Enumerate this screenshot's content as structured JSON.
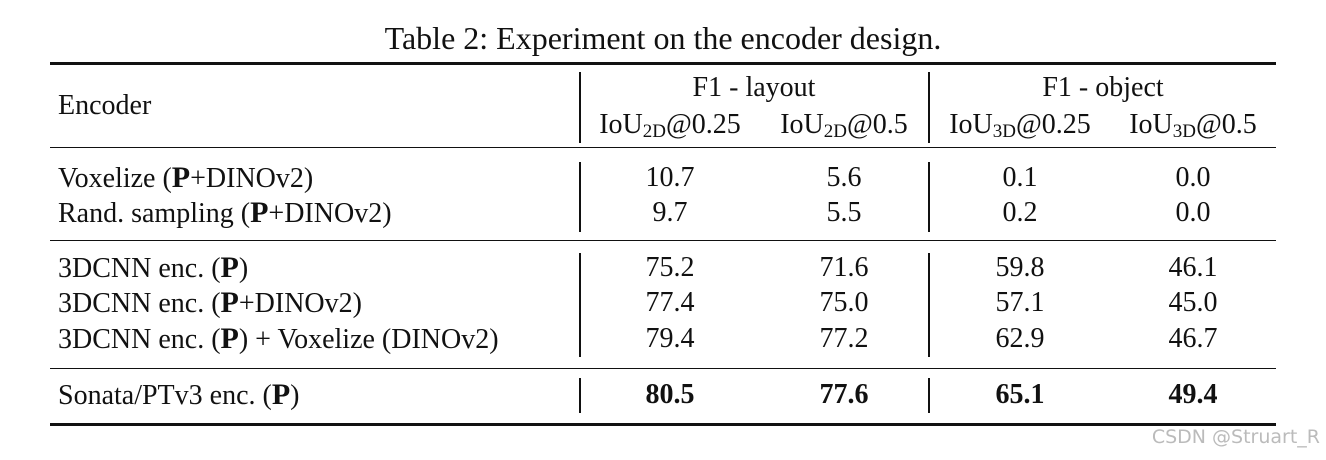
{
  "title": "Table 2: Experiment on the encoder design.",
  "table": {
    "header": {
      "encoder": "Encoder",
      "groups": [
        "F1 - layout",
        "F1 - object"
      ],
      "metrics": [
        {
          "base": "IoU",
          "sub": "2D",
          "rest": "@0.25"
        },
        {
          "base": "IoU",
          "sub": "2D",
          "rest": "@0.5"
        },
        {
          "base": "IoU",
          "sub": "3D",
          "rest": "@0.25"
        },
        {
          "base": "IoU",
          "sub": "3D",
          "rest": "@0.5"
        }
      ]
    },
    "sections": [
      [
        {
          "encoder": [
            "Voxelize (",
            {
              "text": "P",
              "bold": true
            },
            "+DINOv2)"
          ],
          "values": [
            "10.7",
            "5.6",
            "0.1",
            "0.0"
          ]
        },
        {
          "encoder": [
            "Rand. sampling (",
            {
              "text": "P",
              "bold": true
            },
            "+DINOv2)"
          ],
          "values": [
            "9.7",
            "5.5",
            "0.2",
            "0.0"
          ]
        }
      ],
      [
        {
          "encoder": [
            "3DCNN enc. (",
            {
              "text": "P",
              "bold": true
            },
            ")"
          ],
          "values": [
            "75.2",
            "71.6",
            "59.8",
            "46.1"
          ]
        },
        {
          "encoder": [
            "3DCNN enc. (",
            {
              "text": "P",
              "bold": true
            },
            "+DINOv2)"
          ],
          "values": [
            "77.4",
            "75.0",
            "57.1",
            "45.0"
          ]
        },
        {
          "encoder": [
            "3DCNN enc. (",
            {
              "text": "P",
              "bold": true
            },
            ") + Voxelize (DINOv2)"
          ],
          "values": [
            "79.4",
            "77.2",
            "62.9",
            "46.7"
          ]
        }
      ],
      [
        {
          "encoder": [
            "Sonata/PTv3 enc. (",
            {
              "text": "P",
              "bold": true
            },
            ")"
          ],
          "values": [
            "80.5",
            "77.6",
            "65.1",
            "49.4"
          ],
          "bold": true
        }
      ]
    ]
  },
  "watermark": "CSDN @Struart_R"
}
